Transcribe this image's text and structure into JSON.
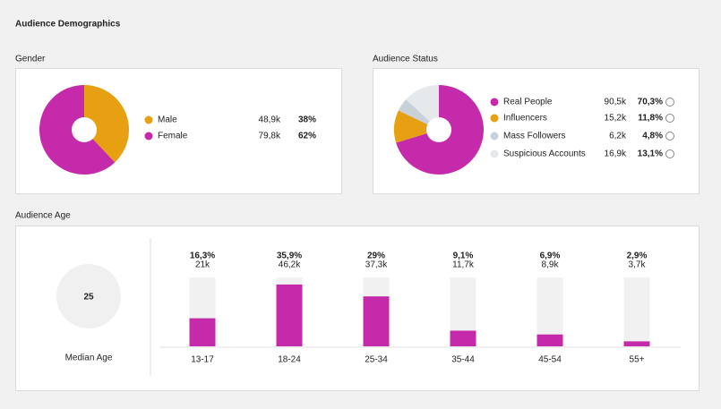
{
  "title": "Audience Demographics",
  "gender": {
    "type": "pie",
    "title": "Gender",
    "categories": [
      "Male",
      "Female"
    ],
    "values": [
      38,
      62
    ],
    "value_labels": [
      "38%",
      "62%"
    ],
    "counts": [
      "48,9k",
      "79,8k"
    ],
    "colors": [
      "#e8a013",
      "#c42aa9"
    ]
  },
  "status": {
    "type": "pie",
    "title": "Audience Status",
    "categories": [
      "Real People",
      "Influencers",
      "Mass Followers",
      "Suspicious Accounts"
    ],
    "values": [
      70.3,
      11.8,
      4.8,
      13.1
    ],
    "value_labels": [
      "70,3%",
      "11,8%",
      "4,8%",
      "13,1%"
    ],
    "counts": [
      "90,5k",
      "15,2k",
      "6,2k",
      "16,9k"
    ],
    "colors": [
      "#c42aa9",
      "#e8a013",
      "#c9d1d8",
      "#e5e9ec"
    ]
  },
  "age": {
    "type": "bar",
    "title": "Audience Age",
    "categories": [
      "13-17",
      "18-24",
      "25-34",
      "35-44",
      "45-54",
      "55+"
    ],
    "values": [
      16.3,
      35.9,
      29,
      9.1,
      6.9,
      2.9
    ],
    "value_labels": [
      "16,3%",
      "35,9%",
      "29%",
      "9,1%",
      "6,9%",
      "2,9%"
    ],
    "counts": [
      "21k",
      "46,2k",
      "37,3k",
      "11,7k",
      "8,9k",
      "3,7k"
    ],
    "color": "#c42aa9",
    "ylim": [
      0,
      40
    ],
    "median": 25,
    "median_label": "Median Age"
  }
}
